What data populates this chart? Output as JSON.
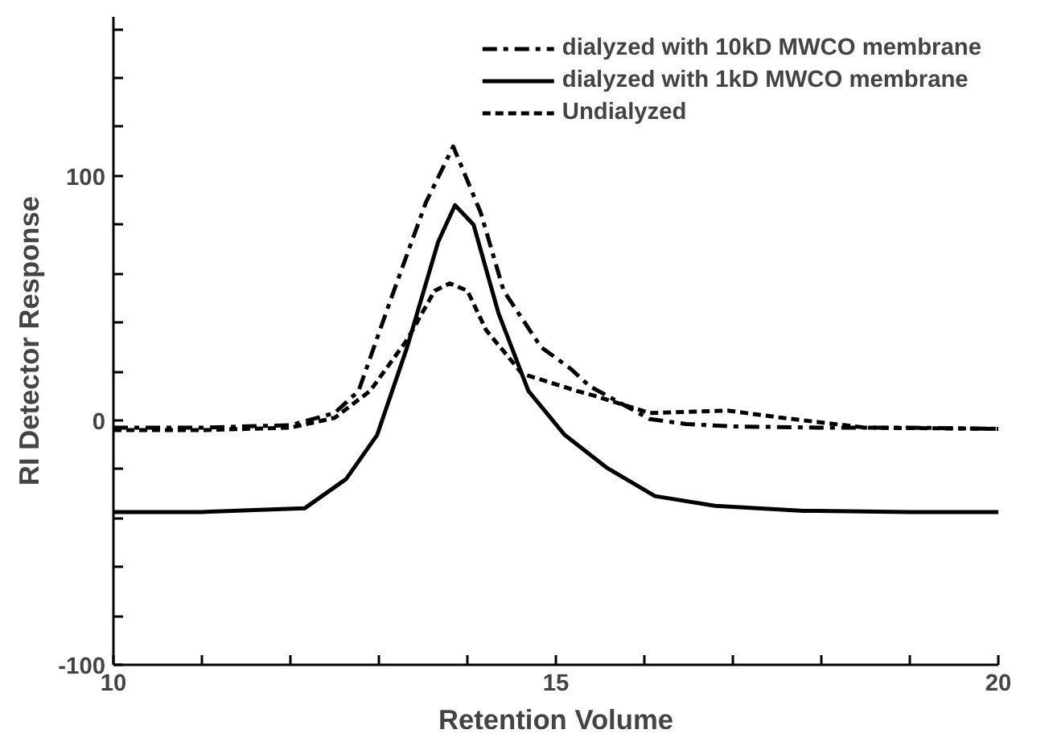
{
  "chart_data": {
    "type": "line",
    "xlabel": "Retention Volume",
    "ylabel": "RI Detector Response",
    "xlim": [
      10,
      20
    ],
    "ylim": [
      -100,
      165
    ],
    "xticks": [
      10,
      {
        "value": 11,
        "label": null
      },
      {
        "value": 12,
        "label": null
      },
      {
        "value": 13,
        "label": null
      },
      {
        "value": 14,
        "label": null
      },
      15,
      {
        "value": 16,
        "label": null
      },
      {
        "value": 17,
        "label": null
      },
      {
        "value": 18,
        "label": null
      },
      {
        "value": 19,
        "label": null
      },
      20
    ],
    "yticks": [
      -100,
      {
        "value": -80,
        "label": null
      },
      {
        "value": -60,
        "label": null
      },
      {
        "value": -40,
        "label": null
      },
      {
        "value": -20,
        "label": null
      },
      0,
      {
        "value": 20,
        "label": null
      },
      {
        "value": 40,
        "label": null
      },
      {
        "value": 60,
        "label": null
      },
      {
        "value": 80,
        "label": null
      },
      100,
      {
        "value": 120,
        "label": null
      },
      {
        "value": 140,
        "label": null
      },
      {
        "value": 160,
        "label": null
      }
    ],
    "grid": false,
    "legend": "top right",
    "marker": "none",
    "series": [
      {
        "name": "dialyzed with 10kD MWCO membrane",
        "color": "#000000",
        "line_style": "dashdot",
        "x": [
          10,
          11,
          12,
          12.5,
          12.77,
          13.12,
          13.53,
          13.84,
          14.15,
          14.41,
          14.83,
          15.17,
          15.38,
          16.06,
          16.47,
          17,
          18,
          19,
          20
        ],
        "values": [
          -3,
          -3,
          -2,
          3,
          12,
          48,
          89,
          112,
          85,
          53,
          30,
          21,
          14,
          0.5,
          -1.5,
          -2.5,
          -3,
          -3,
          -3.5
        ]
      },
      {
        "name": "dialyzed with 1kD MWCO membrane",
        "color": "#000000",
        "line_style": "solid",
        "x": [
          10,
          11,
          12.16,
          12.63,
          12.98,
          13.32,
          13.67,
          13.86,
          14.07,
          14.35,
          14.69,
          15.1,
          15.58,
          16.12,
          16.8,
          17.8,
          19,
          20
        ],
        "values": [
          -37.5,
          -37.5,
          -36,
          -24,
          -6,
          30,
          73,
          88,
          80,
          44,
          12,
          -6,
          -19.5,
          -31,
          -35,
          -37,
          -37.5,
          -37.5
        ]
      },
      {
        "name": "Undialyzed",
        "color": "#000000",
        "line_style": "dashed",
        "x": [
          10,
          11,
          12,
          12.5,
          12.9,
          13.32,
          13.63,
          13.8,
          14.0,
          14.21,
          14.62,
          15.24,
          15.44,
          16.06,
          16.94,
          17.56,
          18.5,
          20
        ],
        "values": [
          -4,
          -4,
          -3,
          1,
          12,
          33,
          53,
          56,
          53,
          37,
          19,
          12,
          10,
          3,
          4,
          1,
          -3,
          -3.5
        ]
      }
    ]
  }
}
